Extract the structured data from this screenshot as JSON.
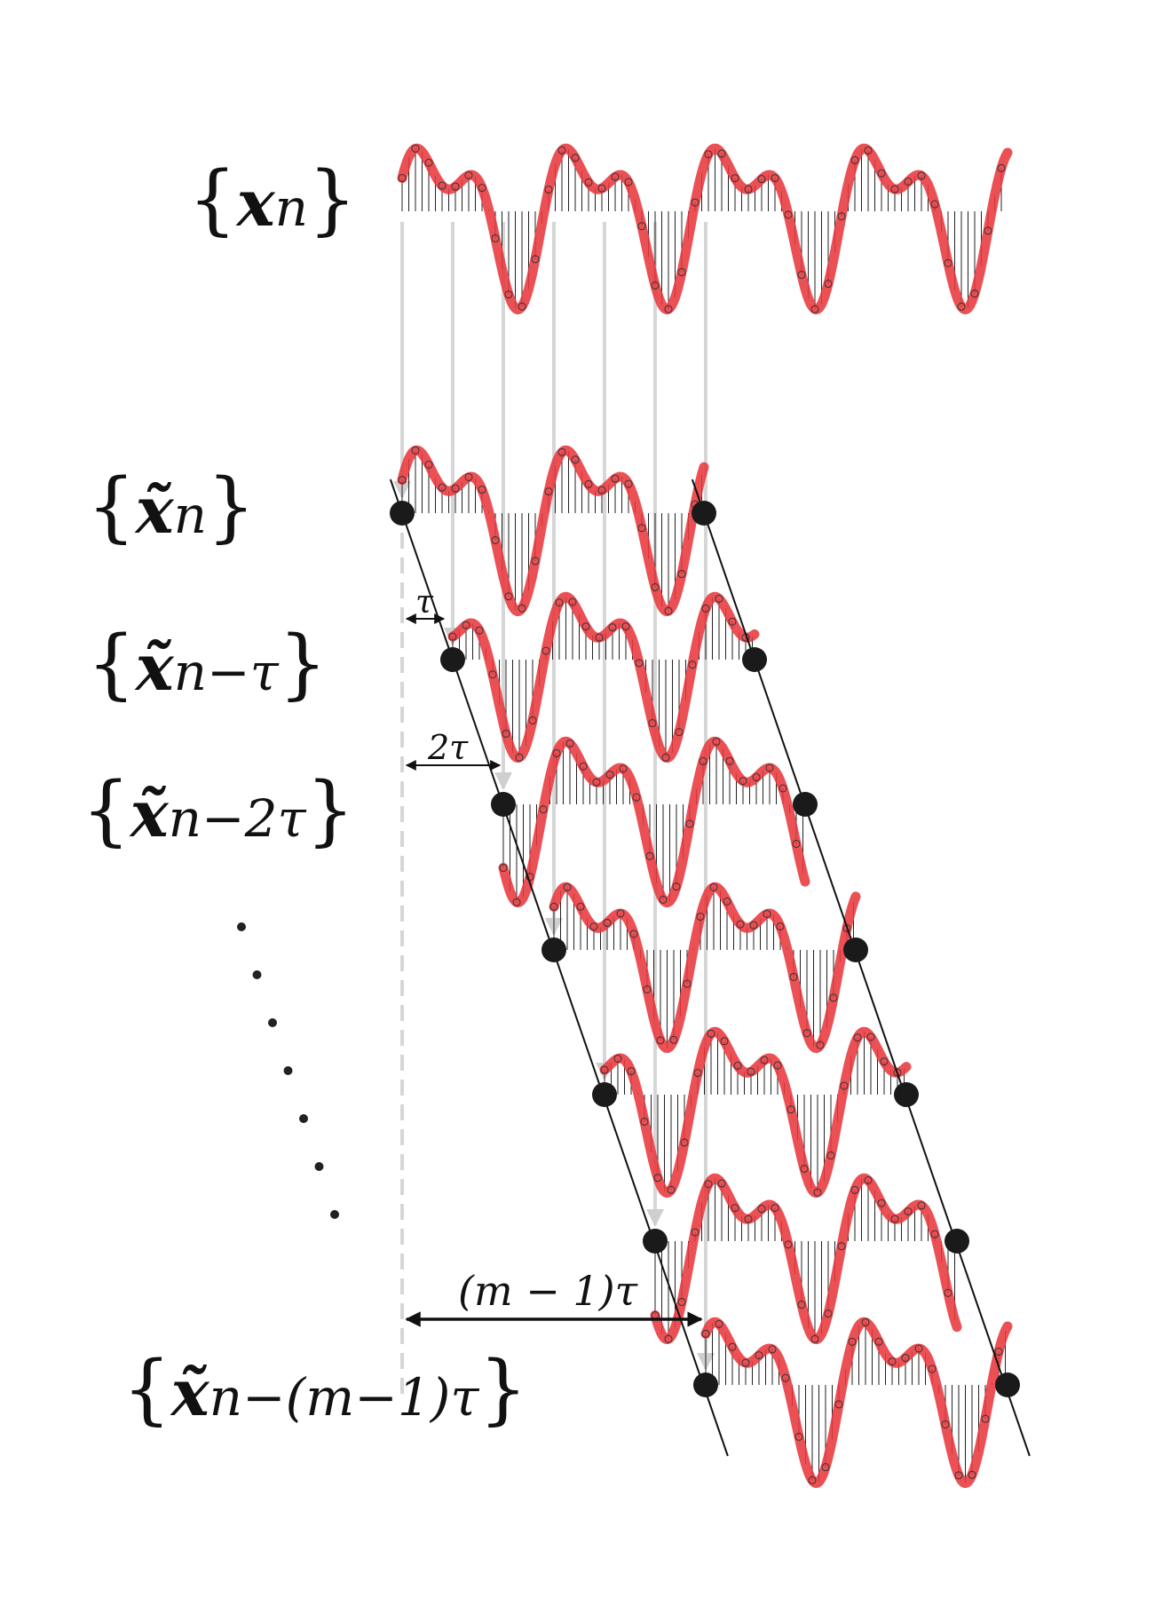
{
  "signal": {
    "original_label": {
      "open": "{",
      "symbol": "x",
      "subscript": "n",
      "close": "}"
    },
    "delayed_labels": [
      {
        "open": "{",
        "symbol": "x̃",
        "subscript": "n",
        "close": "}"
      },
      {
        "open": "{",
        "symbol": "x̃",
        "subscript": "n−τ",
        "close": "}"
      },
      {
        "open": "{",
        "symbol": "x̃",
        "subscript": "n−2τ",
        "close": "}"
      },
      {
        "open": "{",
        "symbol": "x̃",
        "subscript": "n−(m−1)τ",
        "close": "}"
      }
    ]
  },
  "annotations": {
    "delay_1": "τ",
    "delay_2": "2τ",
    "delay_total": "(m − 1)τ"
  },
  "colors": {
    "signal_curve": "#e8383d",
    "stem": "#222222",
    "guide_line": "#d6d6d6",
    "endpoint": "#1a1a1a",
    "boundary_line": "#111111"
  },
  "counts": {
    "delayed_rows": 7,
    "ellipsis_dots": 7
  }
}
